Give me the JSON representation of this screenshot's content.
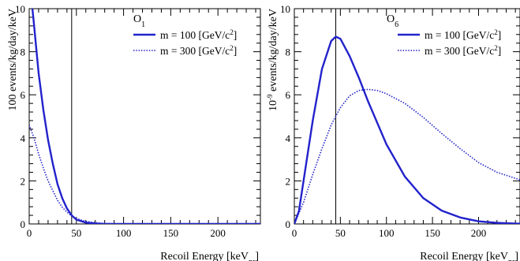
{
  "chart_data": [
    {
      "type": "line",
      "panel_label": "O",
      "panel_label_sub": "1",
      "xlabel": "Recoil Energy [keV",
      "xlabel_sub": "nr",
      "xlabel_suffix": "]",
      "ylabel": "100 events/kg/day/keV",
      "xlim": [
        0,
        245
      ],
      "ylim": [
        0,
        10
      ],
      "xticks": [
        0,
        50,
        100,
        150,
        200
      ],
      "yticks": [
        0,
        2,
        4,
        6,
        8,
        10
      ],
      "threshold_line_x": 45,
      "grid": false,
      "legend_position": "top-right",
      "series": [
        {
          "name": "m = 100 [GeV/c",
          "name_sup": "2",
          "name_suffix": "]",
          "style": "solid",
          "color": "#2222cc",
          "points": [
            [
              0,
              11.5
            ],
            [
              5,
              9.3
            ],
            [
              10,
              7.0
            ],
            [
              15,
              5.3
            ],
            [
              20,
              3.9
            ],
            [
              25,
              2.8
            ],
            [
              30,
              1.85
            ],
            [
              35,
              1.2
            ],
            [
              40,
              0.72
            ],
            [
              45,
              0.4
            ],
            [
              50,
              0.2
            ],
            [
              60,
              0.06
            ],
            [
              70,
              0.02
            ],
            [
              80,
              0.0
            ],
            [
              245,
              0.0
            ]
          ]
        },
        {
          "name": "m = 300 [GeV/c",
          "name_sup": "2",
          "name_suffix": "]",
          "style": "dotted",
          "color": "#2222cc",
          "points": [
            [
              0,
              4.6
            ],
            [
              5,
              4.0
            ],
            [
              10,
              3.25
            ],
            [
              15,
              2.6
            ],
            [
              20,
              2.0
            ],
            [
              25,
              1.55
            ],
            [
              30,
              1.1
            ],
            [
              35,
              0.78
            ],
            [
              40,
              0.55
            ],
            [
              45,
              0.37
            ],
            [
              50,
              0.25
            ],
            [
              60,
              0.12
            ],
            [
              70,
              0.06
            ],
            [
              80,
              0.02
            ],
            [
              100,
              0.0
            ],
            [
              245,
              0.0
            ]
          ]
        }
      ]
    },
    {
      "type": "line",
      "panel_label": "O",
      "panel_label_sub": "6",
      "xlabel": "Recoil Energy [keV",
      "xlabel_sub": "nr",
      "xlabel_suffix": "]",
      "ylabel": "10",
      "ylabel_sup": "-9",
      "ylabel_suffix": " events/kg/day/keV",
      "xlim": [
        0,
        245
      ],
      "ylim": [
        0,
        10
      ],
      "xticks": [
        0,
        50,
        100,
        150,
        200
      ],
      "yticks": [
        0,
        2,
        4,
        6,
        8,
        10
      ],
      "threshold_line_x": 45,
      "grid": false,
      "legend_position": "top-right",
      "series": [
        {
          "name": "m = 100 [GeV/c",
          "name_sup": "2",
          "name_suffix": "]",
          "style": "solid",
          "color": "#2222cc",
          "points": [
            [
              0,
              0.0
            ],
            [
              5,
              0.6
            ],
            [
              10,
              2.0
            ],
            [
              20,
              4.8
            ],
            [
              30,
              7.2
            ],
            [
              40,
              8.5
            ],
            [
              45,
              8.7
            ],
            [
              50,
              8.6
            ],
            [
              60,
              7.8
            ],
            [
              70,
              6.8
            ],
            [
              80,
              5.7
            ],
            [
              90,
              4.7
            ],
            [
              100,
              3.7
            ],
            [
              120,
              2.2
            ],
            [
              140,
              1.2
            ],
            [
              160,
              0.62
            ],
            [
              180,
              0.3
            ],
            [
              200,
              0.12
            ],
            [
              220,
              0.05
            ],
            [
              245,
              0.01
            ]
          ]
        },
        {
          "name": "m = 300 [GeV/c",
          "name_sup": "2",
          "name_suffix": "]",
          "style": "dotted",
          "color": "#2222cc",
          "points": [
            [
              0,
              0.0
            ],
            [
              10,
              1.0
            ],
            [
              20,
              2.3
            ],
            [
              30,
              3.5
            ],
            [
              40,
              4.6
            ],
            [
              50,
              5.4
            ],
            [
              60,
              5.95
            ],
            [
              70,
              6.2
            ],
            [
              80,
              6.25
            ],
            [
              90,
              6.2
            ],
            [
              100,
              6.05
            ],
            [
              120,
              5.6
            ],
            [
              140,
              4.95
            ],
            [
              160,
              4.2
            ],
            [
              180,
              3.5
            ],
            [
              200,
              2.85
            ],
            [
              220,
              2.4
            ],
            [
              245,
              2.05
            ]
          ]
        }
      ]
    }
  ]
}
